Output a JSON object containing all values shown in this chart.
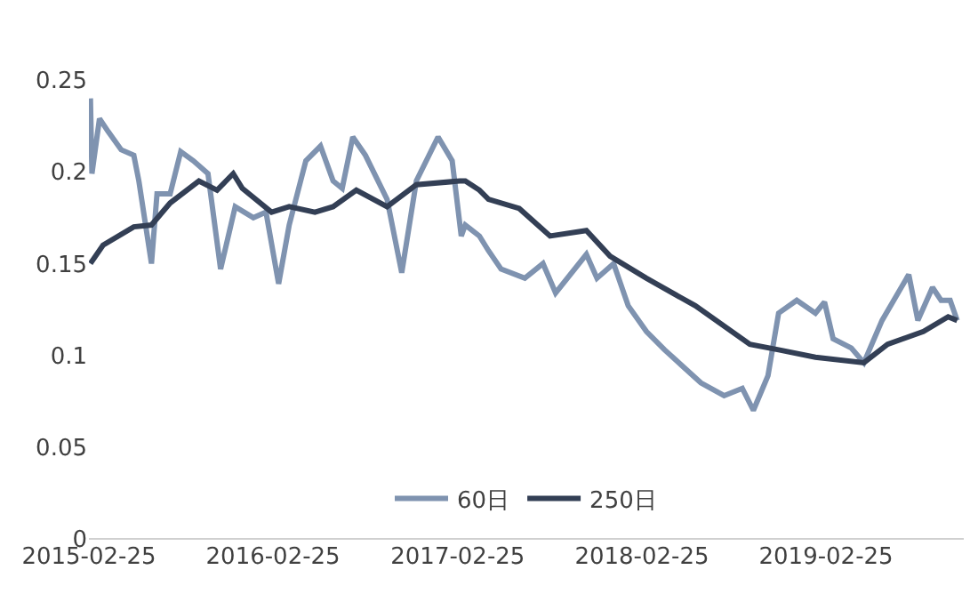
{
  "chart_data": {
    "type": "line",
    "xlim": [
      "2015-02-25",
      "2019-11-25"
    ],
    "xticks": [
      {
        "value": "2015-02-25",
        "label": "2015-02-25"
      },
      {
        "value": "2016-02-25",
        "label": "2016-02-25"
      },
      {
        "value": "2017-02-25",
        "label": "2017-02-25"
      },
      {
        "value": "2018-02-25",
        "label": "2018-02-25"
      },
      {
        "value": "2019-02-25",
        "label": "2019-02-25"
      }
    ],
    "ylim": [
      0,
      0.25
    ],
    "yticks": [
      0,
      0.05,
      0.1,
      0.15,
      0.2,
      0.25
    ],
    "grid": false,
    "legend": "bottom",
    "marker": "none",
    "line_style": "solid",
    "series": [
      {
        "name": "60日",
        "color": "#7f93b0",
        "x": [
          "2015-02-28",
          "2015-03-03",
          "2015-03-18",
          "2015-04-04",
          "2015-04-30",
          "2015-05-25",
          "2015-06-04",
          "2015-06-29",
          "2015-07-10",
          "2015-08-05",
          "2015-08-26",
          "2015-09-20",
          "2015-10-19",
          "2015-11-13",
          "2015-12-12",
          "2016-01-17",
          "2016-02-11",
          "2016-03-07",
          "2016-03-28",
          "2016-04-30",
          "2016-05-29",
          "2016-06-23",
          "2016-07-11",
          "2016-08-01",
          "2016-08-26",
          "2016-10-08",
          "2016-11-06",
          "2016-12-05",
          "2017-01-17",
          "2017-02-14",
          "2017-03-04",
          "2017-03-12",
          "2017-04-09",
          "2017-04-27",
          "2017-05-22",
          "2017-07-08",
          "2017-08-13",
          "2017-09-07",
          "2017-11-07",
          "2017-11-28",
          "2017-12-31",
          "2018-01-29",
          "2018-03-06",
          "2018-04-11",
          "2018-06-22",
          "2018-08-07",
          "2018-09-12",
          "2018-10-04",
          "2018-11-02",
          "2018-11-23",
          "2018-12-29",
          "2019-02-04",
          "2019-02-22",
          "2019-03-11",
          "2019-04-16",
          "2019-05-11",
          "2019-06-16",
          "2019-08-08",
          "2019-08-26",
          "2019-09-24",
          "2019-10-11",
          "2019-10-29",
          "2019-11-12"
        ],
        "values": [
          0.24,
          0.199,
          0.229,
          0.222,
          0.212,
          0.209,
          0.195,
          0.15,
          0.188,
          0.188,
          0.211,
          0.206,
          0.199,
          0.147,
          0.181,
          0.175,
          0.178,
          0.139,
          0.171,
          0.206,
          0.214,
          0.195,
          0.191,
          0.219,
          0.209,
          0.185,
          0.145,
          0.195,
          0.219,
          0.206,
          0.165,
          0.171,
          0.165,
          0.157,
          0.147,
          0.142,
          0.15,
          0.134,
          0.155,
          0.142,
          0.15,
          0.127,
          0.113,
          0.103,
          0.085,
          0.078,
          0.082,
          0.07,
          0.089,
          0.123,
          0.13,
          0.123,
          0.129,
          0.109,
          0.104,
          0.096,
          0.119,
          0.144,
          0.119,
          0.137,
          0.13,
          0.13,
          0.119
        ]
      },
      {
        "name": "250日",
        "color": "#333f55",
        "x": [
          "2015-02-28",
          "2015-03-25",
          "2015-05-25",
          "2015-06-29",
          "2015-08-05",
          "2015-10-01",
          "2015-11-06",
          "2015-12-08",
          "2015-12-26",
          "2016-02-22",
          "2016-03-28",
          "2016-05-18",
          "2016-06-23",
          "2016-08-08",
          "2016-10-08",
          "2016-12-05",
          "2017-03-01",
          "2017-03-12",
          "2017-04-09",
          "2017-04-27",
          "2017-06-27",
          "2017-08-27",
          "2017-11-07",
          "2017-12-24",
          "2018-03-06",
          "2018-06-11",
          "2018-09-27",
          "2018-11-23",
          "2019-02-04",
          "2019-05-11",
          "2019-06-27",
          "2019-09-06",
          "2019-10-25",
          "2019-11-12"
        ],
        "values": [
          0.15,
          0.16,
          0.17,
          0.171,
          0.183,
          0.195,
          0.19,
          0.199,
          0.191,
          0.178,
          0.181,
          0.178,
          0.181,
          0.19,
          0.181,
          0.193,
          0.195,
          0.195,
          0.19,
          0.185,
          0.18,
          0.165,
          0.168,
          0.154,
          0.142,
          0.127,
          0.106,
          0.103,
          0.099,
          0.096,
          0.106,
          0.113,
          0.121,
          0.119
        ]
      }
    ]
  }
}
